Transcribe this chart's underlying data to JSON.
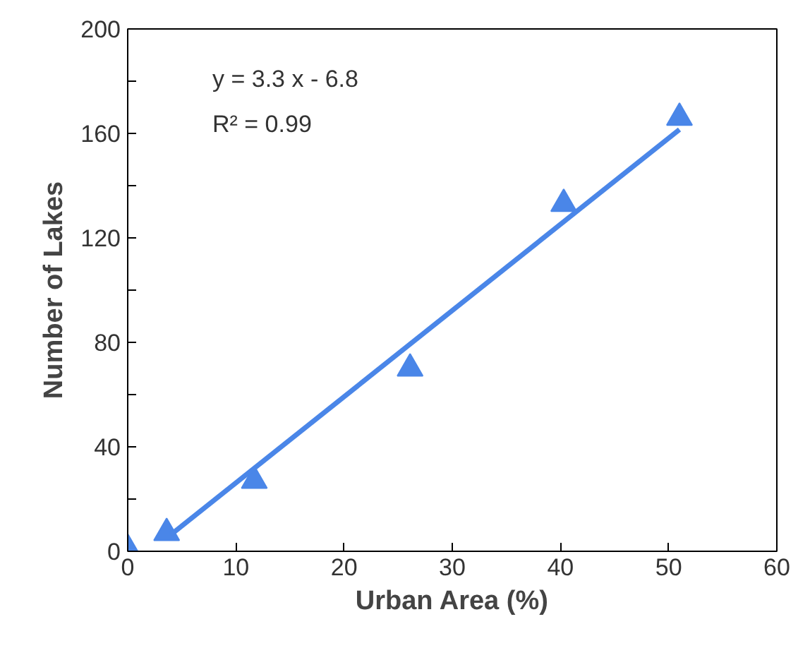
{
  "chart_data": {
    "type": "scatter",
    "xlabel": "Urban Area (%)",
    "ylabel": "Number of Lakes",
    "annotations": [
      "y = 3.3 x - 6.8",
      "R² = 0.99"
    ],
    "xlim": [
      0,
      60
    ],
    "xticks": [
      0,
      10,
      20,
      30,
      40,
      50,
      60
    ],
    "ylim": [
      0,
      200
    ],
    "yticks": [
      0,
      {
        "value": 20,
        "label": null
      },
      40,
      {
        "value": 60,
        "label": null
      },
      80,
      {
        "value": 100,
        "label": null
      },
      120,
      {
        "value": 140,
        "label": null
      },
      160,
      {
        "value": 180,
        "label": null
      },
      200
    ],
    "grid": false,
    "marker": "triangle",
    "series": [
      {
        "color": "#4a86e8",
        "x": [
          0,
          3.6,
          11.7,
          26.1,
          40.3,
          51
        ],
        "values": [
          1,
          7,
          27,
          70,
          133,
          166
        ]
      },
      {
        "type": "line",
        "color": "#4a86e8",
        "line_style": "solid",
        "marker": "none",
        "x": [
          4,
          51
        ],
        "values": [
          6.4,
          161.5
        ]
      }
    ]
  }
}
